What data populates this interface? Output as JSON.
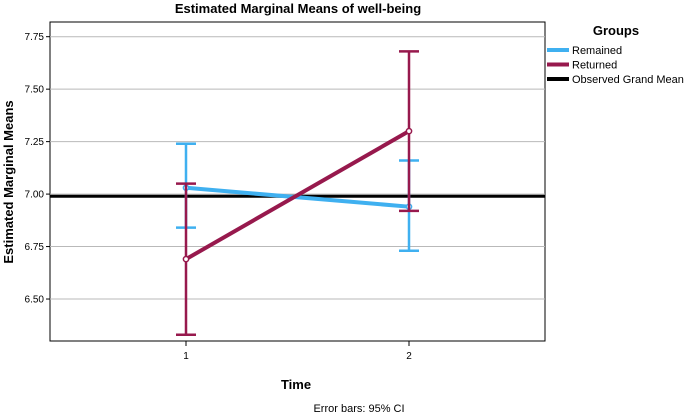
{
  "chart_data": {
    "type": "line",
    "title": "Estimated Marginal Means of well-being",
    "xlabel": "Time",
    "ylabel": "Estimated Marginal Means",
    "categories": [
      "1",
      "2"
    ],
    "ylim": [
      6.3,
      7.82
    ],
    "yticks": [
      "6.50",
      "6.75",
      "7.00",
      "7.25",
      "7.50",
      "7.75"
    ],
    "grid": true,
    "legend": {
      "title": "Groups",
      "position": "top-right"
    },
    "series": [
      {
        "name": "Remained",
        "color": "#3fb0f0",
        "values": [
          7.03,
          6.94
        ],
        "ci_low": [
          6.84,
          6.73
        ],
        "ci_high": [
          7.24,
          7.16
        ]
      },
      {
        "name": "Returned",
        "color": "#97194d",
        "values": [
          6.69,
          7.3
        ],
        "ci_low": [
          6.33,
          6.92
        ],
        "ci_high": [
          7.05,
          7.68
        ]
      }
    ],
    "reference_line": {
      "name": "Observed Grand Mean",
      "value": 6.99,
      "color": "#000000"
    },
    "footnote": "Error bars: 95% CI"
  }
}
